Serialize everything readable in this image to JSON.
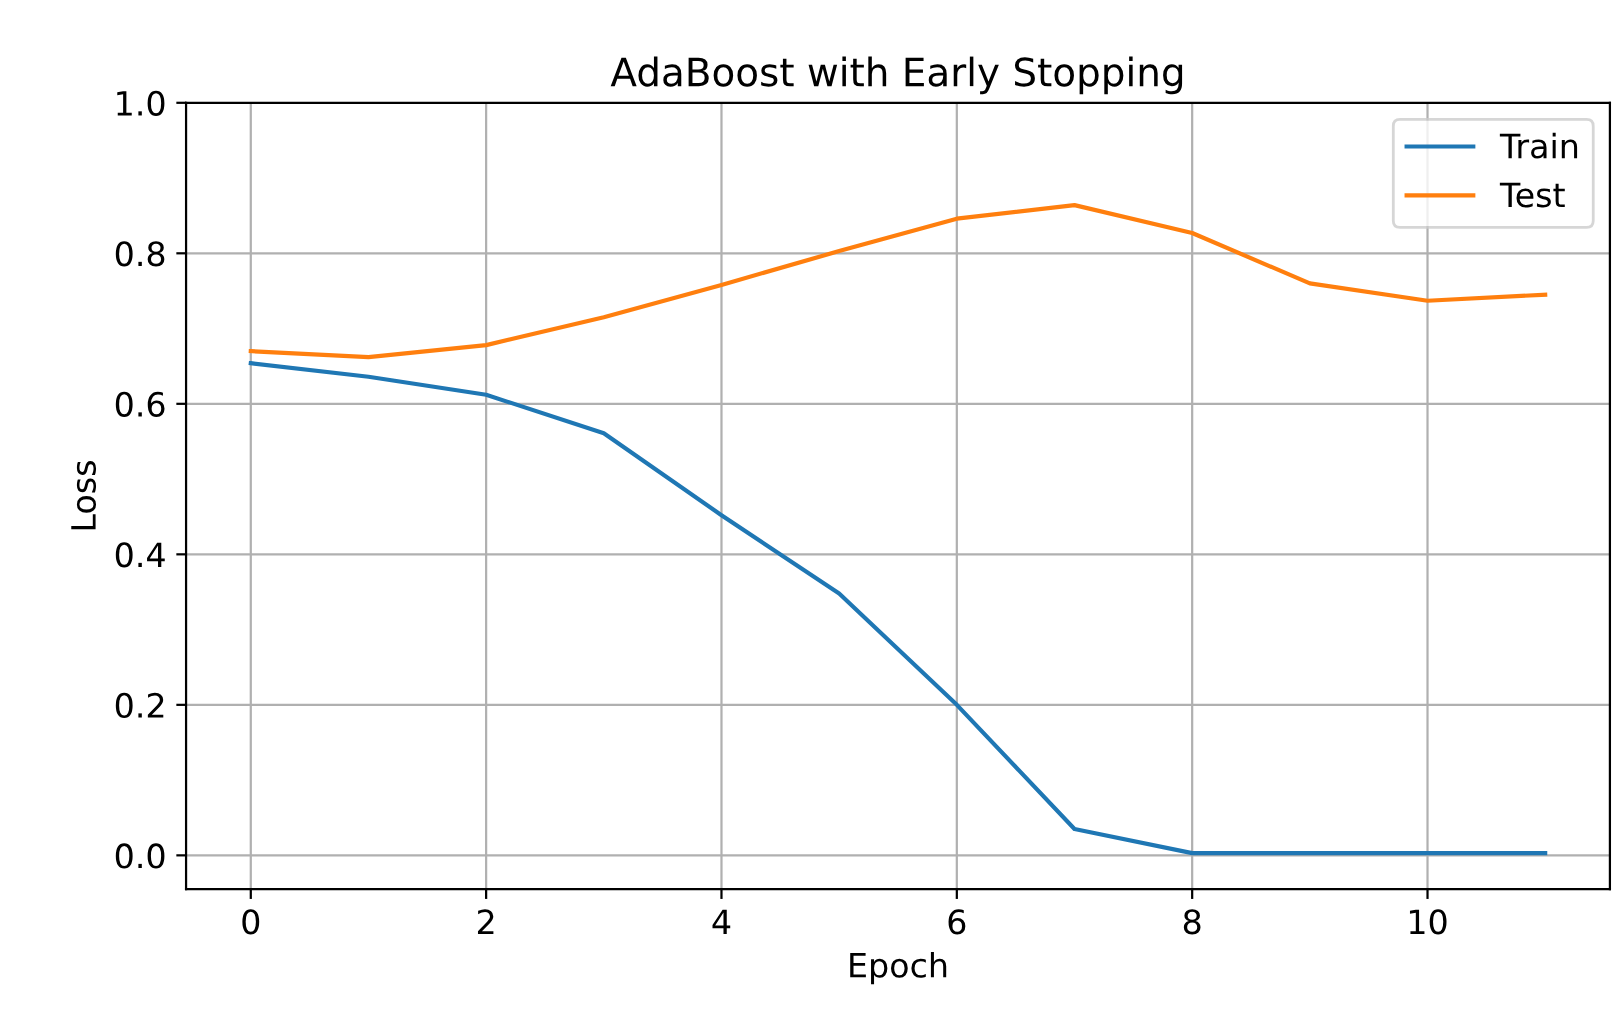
{
  "chart_data": {
    "type": "line",
    "title": "AdaBoost with Early Stopping",
    "xlabel": "Epoch",
    "ylabel": "Loss",
    "x": [
      0,
      1,
      2,
      3,
      4,
      5,
      6,
      7,
      8,
      9,
      10,
      11
    ],
    "series": [
      {
        "name": "Train",
        "color": "#1f77b4",
        "values": [
          0.654,
          0.636,
          0.612,
          0.561,
          0.452,
          0.348,
          0.2,
          0.035,
          0.003,
          0.003,
          0.003,
          0.003
        ]
      },
      {
        "name": "Test",
        "color": "#ff7f0e",
        "values": [
          0.67,
          0.662,
          0.678,
          0.715,
          0.758,
          0.803,
          0.846,
          0.864,
          0.827,
          0.76,
          0.737,
          0.745
        ]
      }
    ],
    "xlim": [
      -0.55,
      11.55
    ],
    "ylim": [
      -0.045,
      1.0
    ],
    "xticks": [
      0,
      2,
      4,
      6,
      8,
      10
    ],
    "yticks": [
      {
        "value": 0.0,
        "label": "0.0"
      },
      {
        "value": 0.2,
        "label": "0.2"
      },
      {
        "value": 0.4,
        "label": "0.4"
      },
      {
        "value": 0.6,
        "label": "0.6"
      },
      {
        "value": 0.8,
        "label": "0.8"
      },
      {
        "value": 1.0,
        "label": "1.0"
      }
    ],
    "grid": true,
    "legend": "top right",
    "marker": "none",
    "line_style": "solid"
  }
}
